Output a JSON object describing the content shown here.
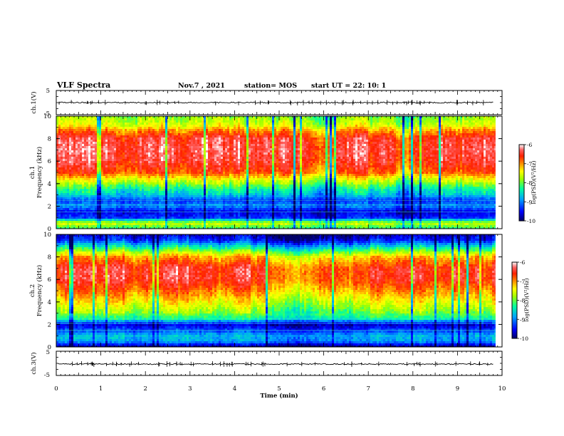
{
  "header": {
    "title": "VLF Spectra",
    "date": "Nov.7 , 2021",
    "station": "station= MOS",
    "start_ut": "start UT = 22: 10: 1"
  },
  "colors": {
    "colormap": [
      "#000066",
      "#0000ff",
      "#00a0ff",
      "#00ffa0",
      "#a0ff00",
      "#ffff00",
      "#ff9000",
      "#ff2000",
      "#ff6060",
      "#ffffff"
    ]
  },
  "chart_data": [
    {
      "type": "line",
      "name": "ch1-waveform",
      "ylabel": "ch.1(V)",
      "ylim": [
        -5,
        5
      ],
      "yticks": [
        "5",
        "-5"
      ],
      "approx_level_volts": 0,
      "xlim": [
        0,
        10
      ]
    },
    {
      "type": "heatmap",
      "name": "ch1-spectrogram",
      "ylabel": "ch.1\nFrequency (kHz)",
      "ylabel_line1": "ch.1",
      "ylabel_line2": "Frequency (kHz)",
      "ylim": [
        0,
        10
      ],
      "yticks": [
        "0",
        "2",
        "4",
        "6",
        "8",
        "10"
      ],
      "xlim": [
        0,
        9.85
      ],
      "colorbar": {
        "label": "log(PSD)(V²/Hz)",
        "range": [
          -10,
          -6
        ],
        "ticks": [
          "-6",
          "-7",
          "-8",
          "-9",
          "-10"
        ]
      },
      "frequency_profile_kHz": [
        0,
        0.5,
        1,
        1.5,
        2,
        2.5,
        3,
        3.5,
        4,
        4.5,
        5,
        6,
        7,
        8,
        8.8,
        9.2,
        10
      ],
      "frequency_profile_logpsd": [
        -8.3,
        -7.6,
        -9.4,
        -9.6,
        -9.0,
        -9.3,
        -8.7,
        -8.4,
        -7.9,
        -7.4,
        -6.8,
        -6.5,
        -6.4,
        -6.5,
        -7.1,
        -7.6,
        -7.9
      ]
    },
    {
      "type": "heatmap",
      "name": "ch2-spectrogram",
      "ylabel": "ch.2\nFrequency (kHz)",
      "ylabel_line1": "ch.2",
      "ylabel_line2": "Frequency (kHz)",
      "ylim": [
        0,
        10
      ],
      "yticks": [
        "0",
        "2",
        "4",
        "6",
        "8",
        "10"
      ],
      "xlim": [
        0,
        9.85
      ],
      "colorbar": {
        "label": "log(PSD)(V²/Hz)",
        "range": [
          -10,
          -6
        ],
        "ticks": [
          "-6",
          "-7",
          "-8",
          "-9",
          "-10"
        ]
      },
      "frequency_profile_kHz": [
        0,
        0.5,
        1,
        1.5,
        2,
        2.5,
        3,
        4,
        5,
        6,
        7,
        8,
        8.8,
        9.5,
        10
      ],
      "frequency_profile_logpsd": [
        -10.0,
        -8.9,
        -8.8,
        -9.3,
        -9.7,
        -8.4,
        -8.0,
        -7.5,
        -7.0,
        -6.6,
        -6.6,
        -7.2,
        -8.4,
        -9.5,
        -9.8
      ]
    },
    {
      "type": "line",
      "name": "ch3-waveform",
      "ylabel": "ch.3(V)",
      "ylim": [
        -5,
        5
      ],
      "yticks": [
        "5",
        "-5"
      ],
      "approx_level_volts": -0.3,
      "xlim": [
        0,
        10
      ]
    }
  ],
  "xaxis": {
    "label": "Time (min)",
    "ticks": [
      "0",
      "1",
      "2",
      "3",
      "4",
      "5",
      "6",
      "7",
      "8",
      "9",
      "10"
    ],
    "range": [
      0,
      10
    ]
  }
}
